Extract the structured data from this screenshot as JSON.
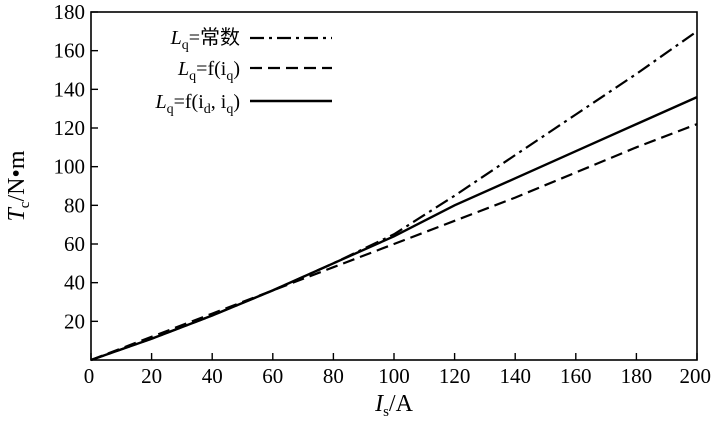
{
  "chart_data": {
    "type": "line",
    "x_label_main": "I",
    "x_label_sub": "s",
    "x_label_unit": "/A",
    "y_label_main": "T",
    "y_label_sub": "c",
    "y_label_unit": "/N•m",
    "xlim": [
      0,
      200
    ],
    "ylim": [
      0,
      180
    ],
    "x_ticks": [
      0,
      20,
      40,
      60,
      80,
      100,
      120,
      140,
      160,
      180,
      200
    ],
    "y_ticks": [
      20,
      40,
      60,
      80,
      100,
      120,
      140,
      160,
      180
    ],
    "grid": false,
    "legend_position": "top-left",
    "series": [
      {
        "name": "Lq=常数",
        "legend": {
          "main": "L",
          "sub": "q",
          "rest": "=常数"
        },
        "style": "dashdot",
        "x": [
          0,
          20,
          40,
          60,
          80,
          100,
          120,
          140,
          160,
          180,
          200
        ],
        "y": [
          0,
          11,
          23,
          36,
          50,
          65,
          85,
          106,
          127,
          148,
          170
        ]
      },
      {
        "name": "Lq=f(iq)",
        "legend": {
          "main": "L",
          "sub": "q",
          "rest": "=f(i",
          "sub2": "q",
          "end": ")"
        },
        "style": "dashed",
        "x": [
          0,
          20,
          40,
          60,
          80,
          100,
          120,
          140,
          160,
          180,
          200
        ],
        "y": [
          0,
          12,
          24,
          36,
          48,
          60,
          72,
          84,
          97,
          110,
          122
        ]
      },
      {
        "name": "Lq=f(id,iq)",
        "legend": {
          "main": "L",
          "sub": "q",
          "rest": "=f(i",
          "sub2": "d",
          "mid": ", i",
          "sub3": "q",
          "end": ")"
        },
        "style": "solid",
        "x": [
          0,
          20,
          40,
          60,
          80,
          100,
          120,
          140,
          160,
          180,
          200
        ],
        "y": [
          0,
          11,
          23,
          36,
          50,
          64,
          80,
          94,
          108,
          122,
          136
        ]
      }
    ]
  }
}
